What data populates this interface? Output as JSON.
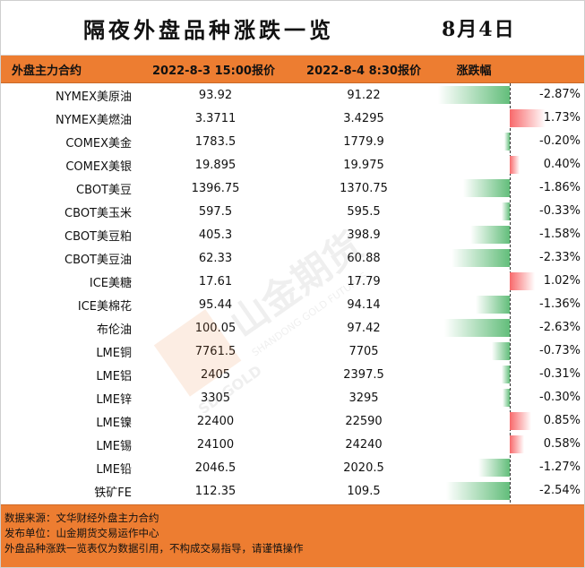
{
  "title": "隔夜外盘品种涨跌一览",
  "date": "8月4日",
  "columns": {
    "name": "外盘主力合约",
    "prev": "2022-8-3 15:00报价",
    "curr": "2022-8-4 8:30报价",
    "change": "涨跌幅"
  },
  "rows": [
    {
      "name": "NYMEX美原油",
      "prev": "93.92",
      "curr": "91.22",
      "pct": "-2.87%",
      "value": -2.87
    },
    {
      "name": "NYMEX美燃油",
      "prev": "3.3711",
      "curr": "3.4295",
      "pct": "1.73%",
      "value": 1.73
    },
    {
      "name": "COMEX美金",
      "prev": "1783.5",
      "curr": "1779.9",
      "pct": "-0.20%",
      "value": -0.2
    },
    {
      "name": "COMEX美银",
      "prev": "19.895",
      "curr": "19.975",
      "pct": "0.40%",
      "value": 0.4
    },
    {
      "name": "CBOT美豆",
      "prev": "1396.75",
      "curr": "1370.75",
      "pct": "-1.86%",
      "value": -1.86
    },
    {
      "name": "CBOT美玉米",
      "prev": "597.5",
      "curr": "595.5",
      "pct": "-0.33%",
      "value": -0.33
    },
    {
      "name": "CBOT美豆粕",
      "prev": "405.3",
      "curr": "398.9",
      "pct": "-1.58%",
      "value": -1.58
    },
    {
      "name": "CBOT美豆油",
      "prev": "62.33",
      "curr": "60.88",
      "pct": "-2.33%",
      "value": -2.33
    },
    {
      "name": "ICE美糖",
      "prev": "17.61",
      "curr": "17.79",
      "pct": "1.02%",
      "value": 1.02
    },
    {
      "name": "ICE美棉花",
      "prev": "95.44",
      "curr": "94.14",
      "pct": "-1.36%",
      "value": -1.36
    },
    {
      "name": "布伦油",
      "prev": "100.05",
      "curr": "97.42",
      "pct": "-2.63%",
      "value": -2.63
    },
    {
      "name": "LME铜",
      "prev": "7761.5",
      "curr": "7705",
      "pct": "-0.73%",
      "value": -0.73
    },
    {
      "name": "LME铝",
      "prev": "2405",
      "curr": "2397.5",
      "pct": "-0.31%",
      "value": -0.31
    },
    {
      "name": "LME锌",
      "prev": "3305",
      "curr": "3295",
      "pct": "-0.30%",
      "value": -0.3
    },
    {
      "name": "LME镍",
      "prev": "22400",
      "curr": "22590",
      "pct": "0.85%",
      "value": 0.85
    },
    {
      "name": "LME锡",
      "prev": "24100",
      "curr": "24240",
      "pct": "0.58%",
      "value": 0.58
    },
    {
      "name": "LME铅",
      "prev": "2046.5",
      "curr": "2020.5",
      "pct": "-1.27%",
      "value": -1.27
    },
    {
      "name": "铁矿FE",
      "prev": "112.35",
      "curr": "109.5",
      "pct": "-2.54%",
      "value": -2.54
    }
  ],
  "footer": {
    "line1": "数据来源：文华财经外盘主力合约",
    "line2": "发布单位：山金期货交易运作中心",
    "line3": "外盘品种涨跌一览表仅为数据引用，不构成交易指导，请谨慎操作"
  },
  "watermark": {
    "brand": "山金期货",
    "sub": "SHANDONG GOLD FUTURES",
    "mark": "SD-GOLD"
  },
  "colors": {
    "accent": "#ed7d31",
    "negative_bar": "#63be7b",
    "positive_bar": "#f8696b"
  }
}
